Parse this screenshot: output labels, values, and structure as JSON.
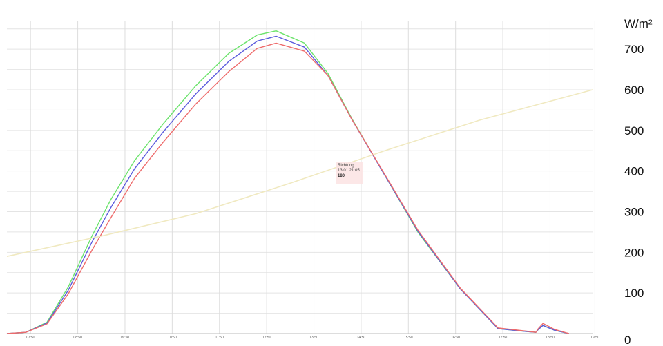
{
  "chart_data": {
    "type": "line",
    "ylabel": "W/m²",
    "y_ticks": [
      "0",
      "100",
      "200",
      "300",
      "400",
      "500",
      "600",
      "700"
    ],
    "ylim": [
      0,
      770
    ],
    "xlim": [
      7.5,
      19.9
    ],
    "x_tick_labels": [
      "07:50",
      "08:50",
      "09:50",
      "10:50",
      "11:50",
      "12:50",
      "13:50",
      "14:50",
      "15:50",
      "16:50",
      "17:50",
      "18:50",
      "19:50"
    ],
    "x_ticks": [
      8,
      9,
      10,
      11,
      12,
      13,
      14,
      15,
      16,
      17,
      18,
      19,
      19.95
    ],
    "grid": true,
    "series": [
      {
        "color": "#6be36b",
        "x": [
          7.5,
          7.9,
          8.35,
          8.8,
          9.3,
          9.7,
          10.2,
          10.8,
          11.5,
          12.2,
          12.8,
          13.2,
          13.8,
          14.3,
          14.8,
          15.5,
          16.2,
          17.1,
          17.9,
          18.5,
          18.7,
          18.75,
          18.85,
          19.1,
          19.4
        ],
        "y": [
          0,
          3,
          28,
          115,
          240,
          330,
          425,
          515,
          610,
          690,
          735,
          745,
          715,
          640,
          530,
          390,
          250,
          110,
          12,
          5,
          3,
          10,
          20,
          8,
          0
        ]
      },
      {
        "color": "#5b5bdd",
        "x": [
          7.5,
          7.9,
          8.35,
          8.8,
          9.3,
          9.7,
          10.2,
          10.8,
          11.5,
          12.2,
          12.8,
          13.2,
          13.8,
          14.3,
          14.8,
          15.5,
          16.2,
          17.1,
          17.9,
          18.5,
          18.7,
          18.75,
          18.85,
          19.1,
          19.4
        ],
        "y": [
          0,
          3,
          26,
          107,
          225,
          310,
          405,
          495,
          590,
          670,
          720,
          732,
          705,
          635,
          528,
          390,
          252,
          110,
          12,
          5,
          3,
          10,
          20,
          8,
          0
        ]
      },
      {
        "color": "#ee6b6b",
        "x": [
          7.5,
          7.9,
          8.35,
          8.8,
          9.3,
          9.7,
          10.2,
          10.8,
          11.5,
          12.2,
          12.8,
          13.2,
          13.8,
          14.3,
          14.8,
          15.5,
          16.2,
          17.1,
          17.9,
          18.5,
          18.7,
          18.75,
          18.85,
          19.1,
          19.4
        ],
        "y": [
          0,
          3,
          24,
          98,
          205,
          285,
          382,
          470,
          565,
          645,
          702,
          715,
          695,
          635,
          528,
          392,
          255,
          112,
          14,
          6,
          3,
          12,
          25,
          10,
          0
        ]
      },
      {
        "color": "#f0e9c0",
        "x": [
          7.5,
          9.5,
          11.5,
          13.5,
          15.5,
          17.5,
          19.9
        ],
        "y": [
          190,
          240,
          295,
          370,
          450,
          525,
          600
        ]
      }
    ],
    "tooltip": {
      "lines": [
        "Richtung",
        "13.01 21:05"
      ],
      "value": "180"
    }
  }
}
